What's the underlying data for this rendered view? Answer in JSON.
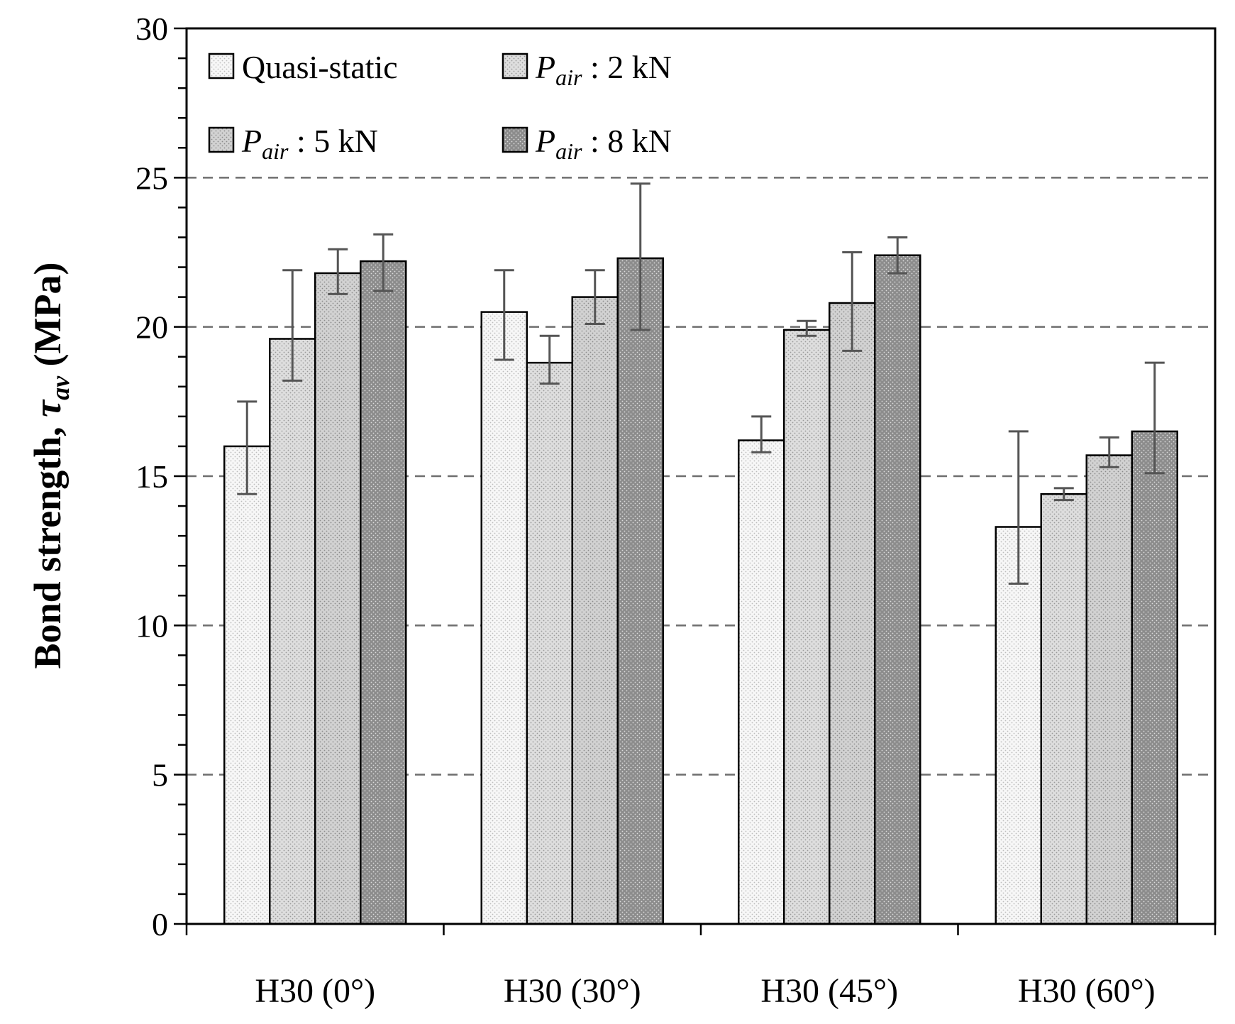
{
  "chart_data": {
    "type": "bar",
    "title": "",
    "xlabel": "",
    "ylabel": {
      "main": "Bond strength, ",
      "symbol": "τ",
      "subscript": "av",
      "unit": " (MPa)"
    },
    "ylim": [
      0,
      30
    ],
    "yticks": [
      "0",
      "5",
      "10",
      "15",
      "20",
      "25",
      "30"
    ],
    "grid": "horizontal dashed at 5, 10, 15, 20, 25",
    "legend_position": "top-left inside",
    "categories": [
      "H30 (0°)",
      "H30 (30°)",
      "H30 (45°)",
      "H30 (60°)"
    ],
    "series": [
      {
        "legend": {
          "plain": "Quasi-static"
        },
        "values": [
          16.0,
          20.5,
          16.2,
          13.3
        ],
        "err_low": [
          14.4,
          18.9,
          15.8,
          11.4
        ],
        "err_high": [
          17.5,
          21.9,
          17.0,
          16.5
        ],
        "fill": "#f7f7f7",
        "dot": "#bdbdbd"
      },
      {
        "legend": {
          "var": "P",
          "sub": "air",
          "rest": " :  2 kN"
        },
        "values": [
          19.6,
          18.8,
          19.9,
          14.4
        ],
        "err_low": [
          18.2,
          18.1,
          19.7,
          14.2
        ],
        "err_high": [
          21.9,
          19.7,
          20.2,
          14.6
        ],
        "fill": "#dedede",
        "dot": "#9a9a9a"
      },
      {
        "legend": {
          "var": "P",
          "sub": "air",
          "rest": " :  5 kN"
        },
        "values": [
          21.8,
          21.0,
          20.8,
          15.7
        ],
        "err_low": [
          21.1,
          20.1,
          19.2,
          15.3
        ],
        "err_high": [
          22.6,
          21.9,
          22.5,
          16.3
        ],
        "fill": "#d2d2d2",
        "dot": "#8c8c8c"
      },
      {
        "legend": {
          "var": "P",
          "sub": "air",
          "rest": " :  8 kN"
        },
        "values": [
          22.2,
          22.3,
          22.4,
          16.5
        ],
        "err_low": [
          21.2,
          19.9,
          21.8,
          15.1
        ],
        "err_high": [
          23.1,
          24.8,
          23.0,
          18.8
        ],
        "fill": "#8c8c8c",
        "dot": "#dcdcdc"
      }
    ]
  }
}
